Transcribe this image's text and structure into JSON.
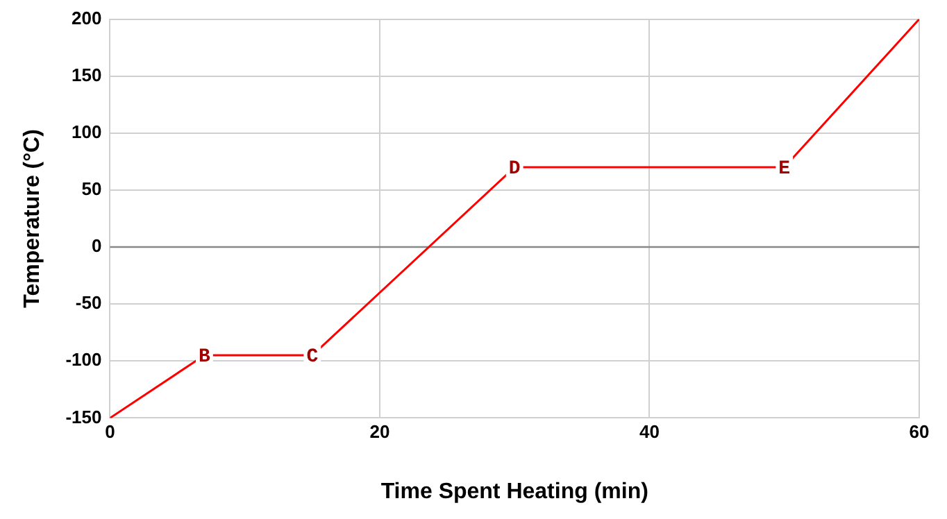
{
  "chart_data": {
    "type": "line",
    "xlabel": "Time Spent Heating (min)",
    "ylabel": "Temperature (°C)",
    "x": [
      0,
      7,
      15,
      30,
      50,
      60
    ],
    "series": [
      {
        "color": "#ff0000",
        "values": [
          -150,
          -95,
          -95,
          70,
          70,
          200
        ]
      }
    ],
    "xlim": [
      0,
      60
    ],
    "xticks": [
      0,
      20,
      40,
      60
    ],
    "ylim": [
      -150,
      200
    ],
    "yticks": [
      -150,
      -100,
      -50,
      0,
      50,
      100,
      150,
      200
    ],
    "grid": true,
    "legend": false,
    "line_style": "solid",
    "ref_lines": [
      {
        "axis": "y",
        "value": 0,
        "color": "#888888"
      }
    ],
    "annotations": [
      {
        "text": "B",
        "x": 7,
        "y": -95
      },
      {
        "text": "C",
        "x": 15,
        "y": -95
      },
      {
        "text": "D",
        "x": 30,
        "y": 70
      },
      {
        "text": "E",
        "x": 50,
        "y": 70
      }
    ]
  }
}
